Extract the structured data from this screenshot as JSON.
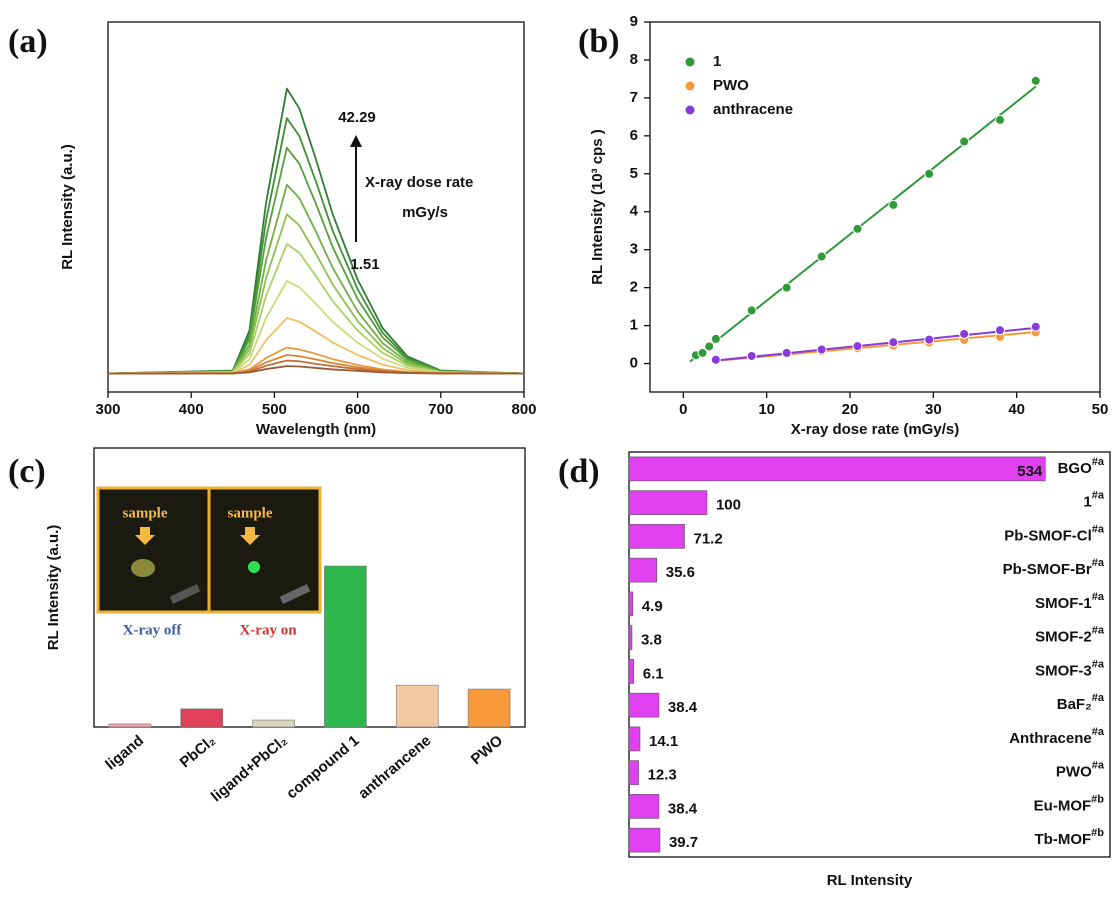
{
  "chart_data": [
    {
      "type": "line",
      "label": "(a)",
      "xlabel": "Wavelength (nm)",
      "ylabel": "RL Intensity (a.u.)",
      "x": [
        300,
        450,
        470,
        490,
        515,
        530,
        550,
        570,
        600,
        630,
        660,
        700,
        800
      ],
      "xlim": [
        300,
        800
      ],
      "xticks": [
        300,
        400,
        500,
        600,
        700,
        800
      ],
      "ylim": [
        0,
        100
      ],
      "annotations": [
        "42.29",
        "X-ray dose rate",
        "mGy/s",
        "1.51"
      ],
      "series": [
        {
          "color": "#2e7d32",
          "values": [
            5,
            5.8,
            16.6,
            51.2,
            82,
            76.6,
            62.8,
            48.1,
            30.4,
            17.3,
            9.6,
            5.8,
            5
          ]
        },
        {
          "color": "#3f8f35",
          "values": [
            5,
            5.7,
            15.4,
            46.4,
            74,
            69.2,
            56.8,
            43.6,
            27.8,
            16.0,
            9.1,
            5.7,
            5
          ]
        },
        {
          "color": "#55a03a",
          "values": [
            5,
            5.6,
            14.2,
            41.6,
            66,
            61.7,
            50.8,
            39.2,
            25.1,
            14.8,
            8.7,
            5.6,
            5
          ]
        },
        {
          "color": "#6fb043",
          "values": [
            5,
            5.5,
            12.7,
            35.6,
            56,
            52.4,
            43.3,
            33.6,
            21.8,
            13.2,
            8.1,
            5.5,
            5
          ]
        },
        {
          "color": "#8dc050",
          "values": [
            5,
            5.4,
            11.5,
            30.8,
            48,
            45.0,
            37.3,
            29.1,
            19.2,
            11.9,
            7.6,
            5.4,
            5
          ]
        },
        {
          "color": "#acd063",
          "values": [
            5,
            5.4,
            10.3,
            26,
            40,
            37.6,
            31.3,
            24.6,
            16.6,
            10.6,
            7.1,
            5.4,
            5
          ]
        },
        {
          "color": "#c8dc78",
          "values": [
            5,
            5.3,
            8.8,
            20,
            30,
            28.3,
            23.8,
            19,
            13.3,
            9,
            6.5,
            5.3,
            5
          ]
        },
        {
          "color": "#f0c060",
          "values": [
            5,
            5.2,
            7.3,
            14,
            20,
            19.0,
            16.3,
            13.4,
            10.0,
            7.4,
            5.9,
            5.2,
            5
          ]
        },
        {
          "color": "#e89a40",
          "values": [
            5,
            5.1,
            6.1,
            9.2,
            12,
            11.5,
            10.3,
            8.9,
            7.3,
            6.1,
            5.4,
            5.1,
            5
          ]
        },
        {
          "color": "#d9863a",
          "values": [
            5,
            5.1,
            5.8,
            8,
            10,
            9.7,
            8.8,
            7.8,
            6.7,
            5.8,
            5.3,
            5.1,
            5
          ]
        },
        {
          "color": "#c0703a",
          "values": [
            5,
            5,
            5.5,
            7.1,
            8.5,
            8.3,
            7.6,
            7,
            6.2,
            5.6,
            5.2,
            5,
            5
          ]
        },
        {
          "color": "#9a5a36",
          "values": [
            5,
            5,
            5.3,
            6.2,
            7,
            6.9,
            6.5,
            6.1,
            5.7,
            5.3,
            5.1,
            5,
            5
          ]
        }
      ]
    },
    {
      "type": "scatter",
      "label": "(b)",
      "xlabel": "X-ray dose rate (mGy/s)",
      "ylabel": "RL Intensity (10³ cps )",
      "xlim": [
        -4,
        50
      ],
      "xticks": [
        0,
        10,
        20,
        30,
        40,
        50
      ],
      "ylim": [
        -0.75,
        9
      ],
      "yticks": [
        0,
        1,
        2,
        3,
        4,
        5,
        6,
        7,
        8,
        9
      ],
      "legend": "upper left",
      "series": [
        {
          "name": "1",
          "color": "#2e9a3a",
          "x": [
            1.51,
            2.3,
            3.1,
            3.9,
            8.2,
            12.4,
            16.6,
            20.9,
            25.2,
            29.5,
            33.7,
            38.0,
            42.29
          ],
          "values": [
            0.22,
            0.28,
            0.45,
            0.65,
            1.4,
            2.0,
            2.82,
            3.55,
            4.18,
            5.0,
            5.85,
            6.42,
            7.45
          ],
          "fit": {
            "x": [
              0.8,
              42.3
            ],
            "values": [
              0.05,
              7.3
            ]
          }
        },
        {
          "name": "PWO",
          "color": "#f59a3a",
          "x": [
            3.9,
            8.2,
            12.4,
            16.6,
            20.9,
            25.2,
            29.5,
            33.7,
            38.0,
            42.29
          ],
          "values": [
            0.08,
            0.18,
            0.25,
            0.33,
            0.4,
            0.47,
            0.55,
            0.62,
            0.7,
            0.82
          ],
          "fit": {
            "x": [
              3.9,
              42.3
            ],
            "values": [
              0.07,
              0.83
            ]
          }
        },
        {
          "name": "anthracene",
          "color": "#8a3ad8",
          "x": [
            3.9,
            8.2,
            12.4,
            16.6,
            20.9,
            25.2,
            29.5,
            33.7,
            38.0,
            42.29
          ],
          "values": [
            0.1,
            0.2,
            0.28,
            0.37,
            0.46,
            0.56,
            0.63,
            0.78,
            0.88,
            0.97
          ],
          "fit": {
            "x": [
              3.9,
              42.3
            ],
            "values": [
              0.08,
              0.94
            ]
          }
        }
      ]
    },
    {
      "type": "bar",
      "label": "(c)",
      "ylabel": "RL Intensity (a.u.)",
      "categories": [
        "ligand",
        "PbCl₂",
        "ligand+PbCl₂",
        "compound 1",
        "anthrancene",
        "PWO"
      ],
      "values": [
        1.1,
        6.5,
        2.5,
        57.7,
        15,
        13.6
      ],
      "colors": [
        "#f4a0b0",
        "#e0405a",
        "#d8d8c0",
        "#2db84d",
        "#f2c9a0",
        "#f7993a"
      ],
      "ylim": [
        0,
        100
      ],
      "annotations": [
        "sample",
        "sample",
        "X-ray off",
        "X-ray on"
      ]
    },
    {
      "type": "barh",
      "label": "(d)",
      "xlabel": "RL Intensity",
      "categories": [
        "BGO",
        "1",
        "Pb-SMOF-Cl",
        "Pb-SMOF-Br",
        "SMOF-1",
        "SMOF-2",
        "SMOF-3",
        "BaF₂",
        "Anthracene",
        "PWO",
        "Eu-MOF",
        "Tb-MOF"
      ],
      "category_notes": [
        "#a",
        "#a",
        "#a",
        "#a",
        "#a",
        "#a",
        "#a",
        "#a",
        "#a",
        "#a",
        "#b",
        "#b"
      ],
      "values": [
        534,
        100,
        71.2,
        35.6,
        4.9,
        3.8,
        6.1,
        38.4,
        14.1,
        12.3,
        38.4,
        39.7
      ],
      "color": "#e040f0",
      "xlim": [
        0,
        617
      ]
    }
  ]
}
